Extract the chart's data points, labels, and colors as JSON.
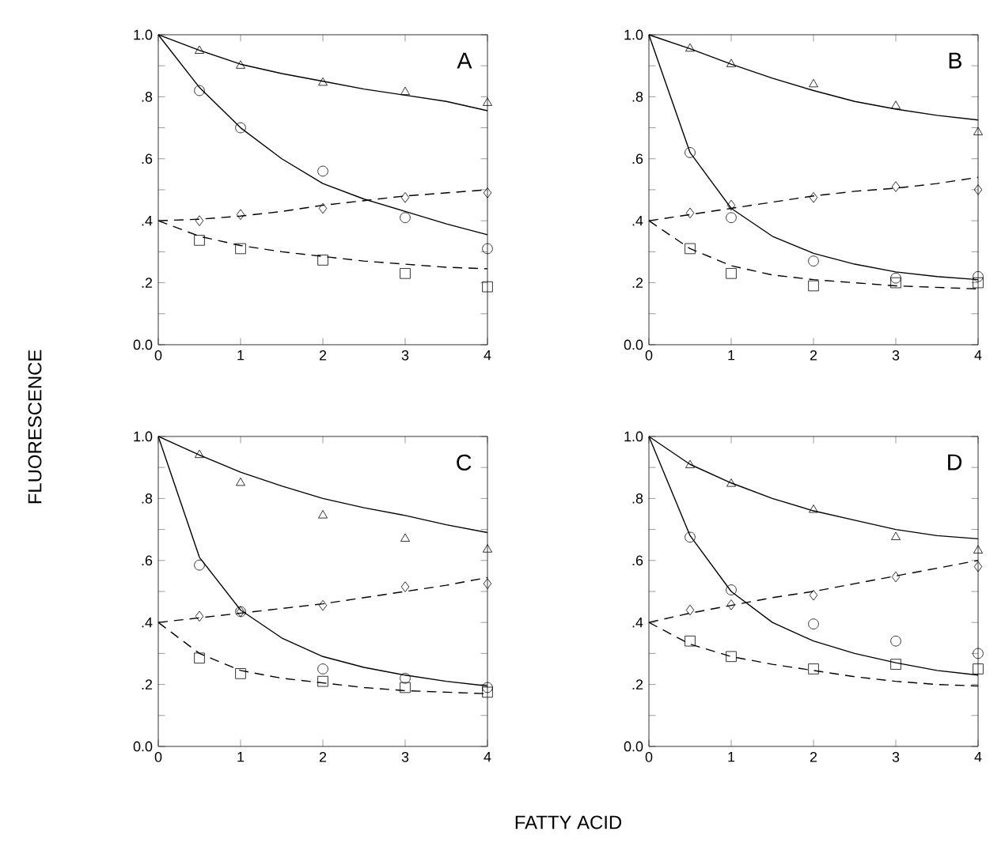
{
  "chart_data": [
    {
      "type": "scatter",
      "annotations": [
        "A"
      ],
      "ylabel": "FLUORESCENCE",
      "xlim": [
        0,
        4
      ],
      "ylim": [
        0,
        1
      ],
      "xticks": [
        0,
        1,
        2,
        3,
        4
      ],
      "yticks": [
        {
          "value": 0,
          "label": "0.0"
        },
        {
          "value": 0.1,
          "label": null
        },
        {
          "value": 0.2,
          "label": ".2"
        },
        {
          "value": 0.3,
          "label": null
        },
        {
          "value": 0.4,
          "label": ".4"
        },
        {
          "value": 0.5,
          "label": null
        },
        {
          "value": 0.6,
          "label": ".6"
        },
        {
          "value": 0.7,
          "label": null
        },
        {
          "value": 0.8,
          "label": ".8"
        },
        {
          "value": 0.9,
          "label": null
        },
        {
          "value": 1,
          "label": "1.0"
        }
      ],
      "grid": false,
      "series": [
        {
          "marker": "triangle",
          "color": "#000000",
          "x": [
            0.5,
            1,
            2,
            3,
            4
          ],
          "values": [
            0.948,
            0.9,
            0.845,
            0.815,
            0.78
          ]
        },
        {
          "marker": "circle",
          "color": "#000000",
          "x": [
            0.5,
            1,
            2,
            3,
            4
          ],
          "values": [
            0.82,
            0.7,
            0.56,
            0.41,
            0.31
          ]
        },
        {
          "marker": "diamond",
          "color": "#000000",
          "x": [
            0.5,
            1,
            2,
            3,
            4
          ],
          "values": [
            0.4,
            0.42,
            0.44,
            0.475,
            0.49
          ]
        },
        {
          "marker": "square",
          "color": "#000000",
          "x": [
            0.5,
            1,
            2,
            3,
            4
          ],
          "values": [
            0.337,
            0.31,
            0.273,
            0.23,
            0.187
          ]
        },
        {
          "type": "line",
          "line_style": "solid",
          "marker": "none",
          "color": "#000000",
          "x": [
            0,
            0.5,
            1,
            1.5,
            2,
            2.5,
            3,
            3.5,
            4
          ],
          "values": [
            1.0,
            0.95,
            0.905,
            0.875,
            0.85,
            0.825,
            0.805,
            0.785,
            0.755
          ]
        },
        {
          "type": "line",
          "line_style": "solid",
          "marker": "none",
          "color": "#000000",
          "x": [
            0,
            0.5,
            1,
            1.5,
            2,
            2.5,
            3,
            3.5,
            4
          ],
          "values": [
            1.0,
            0.83,
            0.7,
            0.6,
            0.52,
            0.47,
            0.43,
            0.39,
            0.355
          ]
        },
        {
          "type": "line",
          "line_style": "dashed",
          "marker": "none",
          "color": "#000000",
          "x": [
            0,
            0.5,
            1,
            1.5,
            2,
            2.5,
            3,
            3.5,
            4
          ],
          "values": [
            0.4,
            0.405,
            0.415,
            0.43,
            0.45,
            0.465,
            0.48,
            0.49,
            0.5
          ]
        },
        {
          "type": "line",
          "line_style": "dashed",
          "marker": "none",
          "color": "#000000",
          "x": [
            0,
            0.5,
            1,
            1.5,
            2,
            2.5,
            3,
            3.5,
            4
          ],
          "values": [
            0.4,
            0.35,
            0.32,
            0.3,
            0.285,
            0.27,
            0.26,
            0.25,
            0.245
          ]
        }
      ]
    },
    {
      "type": "scatter",
      "annotations": [
        "B"
      ],
      "xlim": [
        0,
        4
      ],
      "ylim": [
        0,
        1
      ],
      "xticks": [
        0,
        1,
        2,
        3,
        4
      ],
      "yticks": [
        {
          "value": 0,
          "label": "0.0"
        },
        {
          "value": 0.1,
          "label": null
        },
        {
          "value": 0.2,
          "label": ".2"
        },
        {
          "value": 0.3,
          "label": null
        },
        {
          "value": 0.4,
          "label": ".4"
        },
        {
          "value": 0.5,
          "label": null
        },
        {
          "value": 0.6,
          "label": ".6"
        },
        {
          "value": 0.7,
          "label": null
        },
        {
          "value": 0.8,
          "label": ".8"
        },
        {
          "value": 0.9,
          "label": null
        },
        {
          "value": 1,
          "label": "1.0"
        }
      ],
      "grid": false,
      "series": [
        {
          "marker": "triangle",
          "color": "#000000",
          "x": [
            0.5,
            1,
            2,
            3,
            4
          ],
          "values": [
            0.955,
            0.905,
            0.84,
            0.77,
            0.685
          ]
        },
        {
          "marker": "circle",
          "color": "#000000",
          "x": [
            0.5,
            1,
            2,
            3,
            4
          ],
          "values": [
            0.62,
            0.41,
            0.27,
            0.215,
            0.22
          ]
        },
        {
          "marker": "diamond",
          "color": "#000000",
          "x": [
            0.5,
            1,
            2,
            3,
            4
          ],
          "values": [
            0.425,
            0.45,
            0.475,
            0.51,
            0.5
          ]
        },
        {
          "marker": "square",
          "color": "#000000",
          "x": [
            0.5,
            1,
            2,
            3,
            4
          ],
          "values": [
            0.31,
            0.23,
            0.19,
            0.2,
            0.2
          ]
        },
        {
          "type": "line",
          "line_style": "solid",
          "marker": "none",
          "color": "#000000",
          "x": [
            0,
            0.5,
            1,
            1.5,
            2,
            2.5,
            3,
            3.5,
            4
          ],
          "values": [
            1.0,
            0.955,
            0.905,
            0.86,
            0.82,
            0.785,
            0.76,
            0.74,
            0.725
          ]
        },
        {
          "type": "line",
          "line_style": "solid",
          "marker": "none",
          "color": "#000000",
          "x": [
            0,
            0.5,
            1,
            1.5,
            2,
            2.5,
            3,
            3.5,
            4
          ],
          "values": [
            1.0,
            0.62,
            0.44,
            0.35,
            0.295,
            0.26,
            0.235,
            0.22,
            0.21
          ]
        },
        {
          "type": "line",
          "line_style": "dashed",
          "marker": "none",
          "color": "#000000",
          "x": [
            0,
            0.5,
            1,
            1.5,
            2,
            2.5,
            3,
            3.5,
            4
          ],
          "values": [
            0.4,
            0.42,
            0.44,
            0.46,
            0.48,
            0.495,
            0.505,
            0.52,
            0.54
          ]
        },
        {
          "type": "line",
          "line_style": "dashed",
          "marker": "none",
          "color": "#000000",
          "x": [
            0,
            0.5,
            1,
            1.5,
            2,
            2.5,
            3,
            3.5,
            4
          ],
          "values": [
            0.4,
            0.31,
            0.255,
            0.225,
            0.21,
            0.2,
            0.19,
            0.185,
            0.18
          ]
        }
      ]
    },
    {
      "type": "scatter",
      "annotations": [
        "C"
      ],
      "xlabel": "FATTY ACID",
      "xlim": [
        0,
        4
      ],
      "ylim": [
        0,
        1
      ],
      "xticks": [
        0,
        1,
        2,
        3,
        4
      ],
      "yticks": [
        {
          "value": 0,
          "label": "0.0"
        },
        {
          "value": 0.1,
          "label": null
        },
        {
          "value": 0.2,
          "label": ".2"
        },
        {
          "value": 0.3,
          "label": null
        },
        {
          "value": 0.4,
          "label": ".4"
        },
        {
          "value": 0.5,
          "label": null
        },
        {
          "value": 0.6,
          "label": ".6"
        },
        {
          "value": 0.7,
          "label": null
        },
        {
          "value": 0.8,
          "label": ".8"
        },
        {
          "value": 0.9,
          "label": null
        },
        {
          "value": 1,
          "label": "1.0"
        }
      ],
      "grid": false,
      "series": [
        {
          "marker": "triangle",
          "color": "#000000",
          "x": [
            0.5,
            1,
            2,
            3,
            4
          ],
          "values": [
            0.94,
            0.85,
            0.745,
            0.67,
            0.635
          ]
        },
        {
          "marker": "circle",
          "color": "#000000",
          "x": [
            0.5,
            1,
            2,
            3,
            4
          ],
          "values": [
            0.585,
            0.435,
            0.25,
            0.22,
            0.19
          ]
        },
        {
          "marker": "diamond",
          "color": "#000000",
          "x": [
            0.5,
            1,
            2,
            3,
            4
          ],
          "values": [
            0.42,
            0.435,
            0.455,
            0.515,
            0.525
          ]
        },
        {
          "marker": "square",
          "color": "#000000",
          "x": [
            0.5,
            1,
            2,
            3,
            4
          ],
          "values": [
            0.285,
            0.235,
            0.21,
            0.19,
            0.175
          ]
        },
        {
          "type": "line",
          "line_style": "solid",
          "marker": "none",
          "color": "#000000",
          "x": [
            0,
            0.5,
            1,
            1.5,
            2,
            2.5,
            3,
            3.5,
            4
          ],
          "values": [
            1.0,
            0.94,
            0.885,
            0.84,
            0.8,
            0.77,
            0.745,
            0.715,
            0.69
          ]
        },
        {
          "type": "line",
          "line_style": "solid",
          "marker": "none",
          "color": "#000000",
          "x": [
            0,
            0.5,
            1,
            1.5,
            2,
            2.5,
            3,
            3.5,
            4
          ],
          "values": [
            1.0,
            0.61,
            0.44,
            0.35,
            0.29,
            0.255,
            0.23,
            0.21,
            0.195
          ]
        },
        {
          "type": "line",
          "line_style": "dashed",
          "marker": "none",
          "color": "#000000",
          "x": [
            0,
            0.5,
            1,
            1.5,
            2,
            2.5,
            3,
            3.5,
            4
          ],
          "values": [
            0.4,
            0.415,
            0.43,
            0.445,
            0.46,
            0.48,
            0.5,
            0.52,
            0.545
          ]
        },
        {
          "type": "line",
          "line_style": "dashed",
          "marker": "none",
          "color": "#000000",
          "x": [
            0,
            0.5,
            1,
            1.5,
            2,
            2.5,
            3,
            3.5,
            4
          ],
          "values": [
            0.4,
            0.3,
            0.245,
            0.22,
            0.205,
            0.19,
            0.18,
            0.175,
            0.17
          ]
        }
      ]
    },
    {
      "type": "scatter",
      "annotations": [
        "D"
      ],
      "xlim": [
        0,
        4
      ],
      "ylim": [
        0,
        1
      ],
      "xticks": [
        0,
        1,
        2,
        3,
        4
      ],
      "yticks": [
        {
          "value": 0,
          "label": "0.0"
        },
        {
          "value": 0.1,
          "label": null
        },
        {
          "value": 0.2,
          "label": ".2"
        },
        {
          "value": 0.3,
          "label": null
        },
        {
          "value": 0.4,
          "label": ".4"
        },
        {
          "value": 0.5,
          "label": null
        },
        {
          "value": 0.6,
          "label": ".6"
        },
        {
          "value": 0.7,
          "label": null
        },
        {
          "value": 0.8,
          "label": ".8"
        },
        {
          "value": 0.9,
          "label": null
        },
        {
          "value": 1,
          "label": "1.0"
        }
      ],
      "grid": false,
      "series": [
        {
          "marker": "triangle",
          "color": "#000000",
          "x": [
            0.5,
            1,
            2,
            3,
            4
          ],
          "values": [
            0.907,
            0.847,
            0.763,
            0.675,
            0.632
          ]
        },
        {
          "marker": "circle",
          "color": "#000000",
          "x": [
            0.5,
            1,
            2,
            3,
            4
          ],
          "values": [
            0.675,
            0.505,
            0.395,
            0.34,
            0.3
          ]
        },
        {
          "marker": "diamond",
          "color": "#000000",
          "x": [
            0.5,
            1,
            2,
            3,
            4
          ],
          "values": [
            0.44,
            0.457,
            0.488,
            0.547,
            0.58
          ]
        },
        {
          "marker": "square",
          "color": "#000000",
          "x": [
            0.5,
            1,
            2,
            3,
            4
          ],
          "values": [
            0.34,
            0.29,
            0.25,
            0.265,
            0.25
          ]
        },
        {
          "type": "line",
          "line_style": "solid",
          "marker": "none",
          "color": "#000000",
          "x": [
            0,
            0.5,
            1,
            1.5,
            2,
            2.5,
            3,
            3.5,
            4
          ],
          "values": [
            1.0,
            0.91,
            0.85,
            0.8,
            0.76,
            0.73,
            0.7,
            0.68,
            0.67
          ]
        },
        {
          "type": "line",
          "line_style": "solid",
          "marker": "none",
          "color": "#000000",
          "x": [
            0,
            0.5,
            1,
            1.5,
            2,
            2.5,
            3,
            3.5,
            4
          ],
          "values": [
            1.0,
            0.68,
            0.5,
            0.4,
            0.34,
            0.3,
            0.27,
            0.245,
            0.23
          ]
        },
        {
          "type": "line",
          "line_style": "dashed",
          "marker": "none",
          "color": "#000000",
          "x": [
            0,
            0.5,
            1,
            1.5,
            2,
            2.5,
            3,
            3.5,
            4
          ],
          "values": [
            0.4,
            0.43,
            0.455,
            0.48,
            0.5,
            0.525,
            0.55,
            0.575,
            0.6
          ]
        },
        {
          "type": "line",
          "line_style": "dashed",
          "marker": "none",
          "color": "#000000",
          "x": [
            0,
            0.5,
            1,
            1.5,
            2,
            2.5,
            3,
            3.5,
            4
          ],
          "values": [
            0.4,
            0.33,
            0.29,
            0.265,
            0.245,
            0.225,
            0.21,
            0.2,
            0.195
          ]
        }
      ]
    }
  ]
}
